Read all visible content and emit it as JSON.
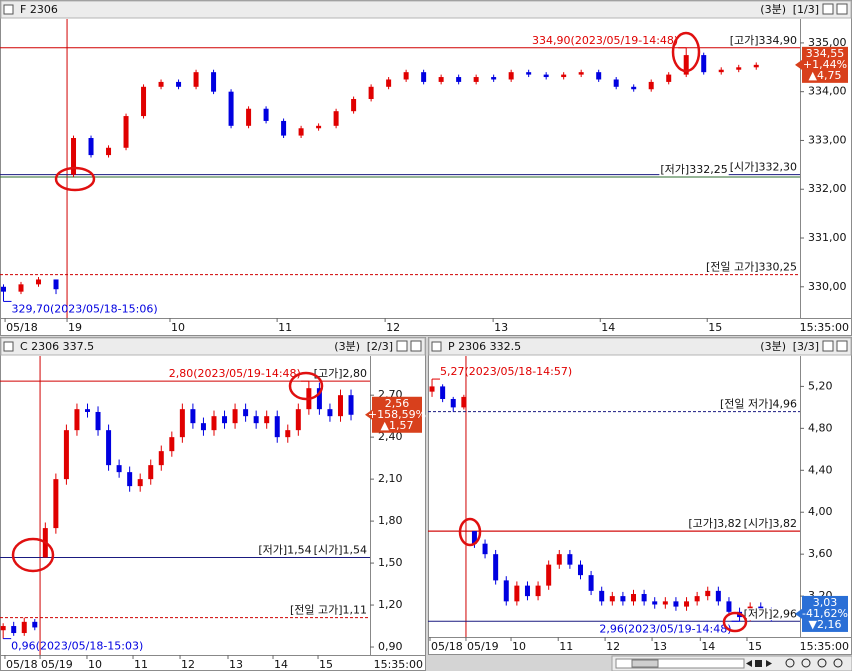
{
  "chart_data": [
    {
      "type": "candlestick",
      "title": "F 2306",
      "interval": "(3분)",
      "page": "[1/3]",
      "end_label": "15:35:00",
      "xlim": [
        -0.2,
        45.5
      ],
      "xticks": [
        {
          "value": 0.09,
          "label": "05/18"
        },
        {
          "value": 3.63,
          "label": "19"
        },
        {
          "value": 9.51,
          "label": "10"
        },
        {
          "value": 15.63,
          "label": "11"
        },
        {
          "value": 21.8,
          "label": "12"
        },
        {
          "value": 27.97,
          "label": "13"
        },
        {
          "value": 34.09,
          "label": "14"
        },
        {
          "value": 40.2,
          "label": "15"
        }
      ],
      "ylim": [
        329.36,
        335.49
      ],
      "yticks": [
        {
          "value": 335,
          "label": "335,00"
        },
        {
          "value": 334,
          "label": "334,00"
        },
        {
          "value": 333,
          "label": "333,00"
        },
        {
          "value": 332,
          "label": "332,00"
        },
        {
          "value": 331,
          "label": "331,00"
        },
        {
          "value": 330,
          "label": "330,00"
        }
      ],
      "up_color": "#e00000",
      "down_color": "#0000e0",
      "open": [
        330.0,
        329.9,
        330.05,
        330.15,
        332.3,
        333.05,
        332.7,
        332.85,
        333.5,
        334.1,
        334.2,
        334.1,
        334.4,
        334.0,
        333.3,
        333.65,
        333.4,
        333.1,
        333.25,
        333.3,
        333.6,
        333.85,
        334.1,
        334.25,
        334.4,
        334.2,
        334.3,
        334.2,
        334.3,
        334.25,
        334.4,
        334.35,
        334.3,
        334.35,
        334.4,
        334.25,
        334.1,
        334.05,
        334.2,
        334.35,
        334.75,
        334.4,
        334.45,
        334.5
      ],
      "high": [
        330.05,
        330.1,
        330.2,
        330.15,
        333.1,
        333.1,
        332.9,
        333.55,
        334.15,
        334.25,
        334.25,
        334.45,
        334.45,
        334.05,
        333.7,
        333.7,
        333.45,
        333.3,
        333.35,
        333.65,
        333.9,
        334.15,
        334.3,
        334.45,
        334.45,
        334.35,
        334.35,
        334.35,
        334.35,
        334.45,
        334.45,
        334.4,
        334.4,
        334.45,
        334.45,
        334.3,
        334.15,
        334.25,
        334.4,
        334.9,
        334.8,
        334.5,
        334.55,
        334.6
      ],
      "low": [
        329.7,
        329.85,
        330.0,
        329.85,
        332.25,
        332.65,
        332.65,
        332.8,
        333.45,
        334.05,
        334.05,
        334.05,
        333.95,
        333.25,
        333.25,
        333.35,
        333.05,
        333.05,
        333.2,
        333.25,
        333.55,
        333.8,
        334.05,
        334.2,
        334.15,
        334.15,
        334.15,
        334.15,
        334.2,
        334.2,
        334.3,
        334.25,
        334.25,
        334.3,
        334.2,
        334.05,
        334.0,
        334.0,
        334.15,
        334.3,
        334.35,
        334.35,
        334.4,
        334.45
      ],
      "close": [
        329.9,
        330.05,
        330.15,
        329.95,
        333.05,
        332.7,
        332.85,
        333.5,
        334.1,
        334.2,
        334.1,
        334.4,
        334.0,
        333.3,
        333.65,
        333.4,
        333.1,
        333.25,
        333.3,
        333.6,
        333.85,
        334.1,
        334.25,
        334.4,
        334.2,
        334.3,
        334.2,
        334.3,
        334.25,
        334.4,
        334.35,
        334.3,
        334.35,
        334.4,
        334.25,
        334.1,
        334.05,
        334.2,
        334.35,
        334.75,
        334.4,
        334.45,
        334.5,
        334.55
      ],
      "levels": [
        {
          "value": 334.9,
          "label": "[고가]334,90",
          "color": "#d00000",
          "dashed": false
        },
        {
          "value": 332.25,
          "label": "[저가]332,25",
          "color": "#2e6b2e",
          "dashed": false
        },
        {
          "value": 332.3,
          "label": "[시가]332,30",
          "color": "#1a1a80",
          "dashed": false
        },
        {
          "value": 330.25,
          "label": "[전일 고가]330,25",
          "color": "#d00000",
          "dashed": true
        }
      ],
      "extremes": [
        {
          "value": 334.9,
          "label": "334,90(2023/05/19-14:48)"
        },
        {
          "value": 329.7,
          "label": "329,70(2023/05/18-15:06)"
        }
      ],
      "last_box": {
        "price": "334,55",
        "change_pct": "+1,44%",
        "change": "▲4,75",
        "color": "#d8401c"
      }
    },
    {
      "type": "candlestick",
      "title": "C 2306 337.5",
      "interval": "(3분)",
      "page": "[2/3]",
      "end_label": "15:35:00",
      "xlim": [
        -0.3,
        34.8
      ],
      "xticks": [
        {
          "value": 0.17,
          "label": "05/18"
        },
        {
          "value": 3.5,
          "label": "05/19"
        },
        {
          "value": 7.95,
          "label": "10"
        },
        {
          "value": 12.32,
          "label": "11"
        },
        {
          "value": 16.78,
          "label": "12"
        },
        {
          "value": 21.33,
          "label": "13"
        },
        {
          "value": 25.6,
          "label": "14"
        },
        {
          "value": 29.87,
          "label": "15"
        }
      ],
      "ylim": [
        0.843,
        2.98
      ],
      "yticks": [
        {
          "value": 2.7,
          "label": "2,70"
        },
        {
          "value": 2.4,
          "label": "2,40"
        },
        {
          "value": 2.1,
          "label": "2,10"
        },
        {
          "value": 1.8,
          "label": "1,80"
        },
        {
          "value": 1.5,
          "label": "1,50"
        },
        {
          "value": 1.2,
          "label": "1,20"
        },
        {
          "value": 0.9,
          "label": "0,90"
        }
      ],
      "up_color": "#e00000",
      "down_color": "#0000e0",
      "open": [
        1.02,
        1.05,
        1.0,
        1.08,
        1.54,
        1.75,
        2.1,
        2.45,
        2.6,
        2.58,
        2.45,
        2.2,
        2.15,
        2.05,
        2.1,
        2.2,
        2.3,
        2.4,
        2.6,
        2.5,
        2.45,
        2.55,
        2.5,
        2.6,
        2.55,
        2.5,
        2.55,
        2.4,
        2.45,
        2.6,
        2.75,
        2.6,
        2.55,
        2.7
      ],
      "high": [
        1.07,
        1.08,
        1.11,
        1.1,
        1.79,
        2.14,
        2.49,
        2.64,
        2.64,
        2.62,
        2.49,
        2.24,
        2.19,
        2.14,
        2.24,
        2.34,
        2.44,
        2.64,
        2.64,
        2.54,
        2.59,
        2.59,
        2.64,
        2.64,
        2.59,
        2.59,
        2.59,
        2.49,
        2.64,
        2.8,
        2.79,
        2.64,
        2.74,
        2.74
      ],
      "low": [
        0.96,
        0.98,
        0.98,
        1.02,
        1.54,
        1.71,
        2.06,
        2.41,
        2.54,
        2.41,
        2.16,
        2.11,
        2.01,
        2.01,
        2.06,
        2.16,
        2.26,
        2.36,
        2.46,
        2.41,
        2.41,
        2.46,
        2.46,
        2.51,
        2.46,
        2.46,
        2.36,
        2.36,
        2.41,
        2.56,
        2.56,
        2.51,
        2.51,
        2.52
      ],
      "close": [
        1.05,
        1.0,
        1.08,
        1.04,
        1.75,
        2.1,
        2.45,
        2.6,
        2.58,
        2.45,
        2.2,
        2.15,
        2.05,
        2.1,
        2.2,
        2.3,
        2.4,
        2.6,
        2.5,
        2.45,
        2.55,
        2.5,
        2.6,
        2.55,
        2.5,
        2.55,
        2.4,
        2.45,
        2.6,
        2.75,
        2.6,
        2.55,
        2.7,
        2.56
      ],
      "levels": [
        {
          "value": 2.8,
          "label": "[고가]2,80",
          "color": "#d00000",
          "dashed": false
        },
        {
          "value": 1.54,
          "label": "[저가]1,54",
          "color": "#1a1a80",
          "dashed": false
        },
        {
          "value": 1.54,
          "label": "[시가]1,54",
          "color": "#1a1a80",
          "dashed": false
        },
        {
          "value": 1.11,
          "label": "[전일 고가]1,11",
          "color": "#d00000",
          "dashed": true
        }
      ],
      "extremes": [
        {
          "value": 2.8,
          "label": "2,80(2023/05/19-14:48)"
        },
        {
          "value": 0.96,
          "label": "0,96(2023/05/18-15:03)"
        }
      ],
      "last_box": {
        "price": "2,56",
        "change_pct": "+158,59%",
        "change": "▲1,57",
        "color": "#d8401c"
      }
    },
    {
      "type": "candlestick",
      "title": "P 2306 332.5",
      "interval": "(3분)",
      "page": "[3/3]",
      "end_label": "15:35:00",
      "xlim": [
        -0.38,
        34.7
      ],
      "xticks": [
        {
          "value": -0.19,
          "label": "05/18"
        },
        {
          "value": 3.2,
          "label": "05/19"
        },
        {
          "value": 7.45,
          "label": "10"
        },
        {
          "value": 11.9,
          "label": "11"
        },
        {
          "value": 16.32,
          "label": "12"
        },
        {
          "value": 20.75,
          "label": "13"
        },
        {
          "value": 25.3,
          "label": "14"
        },
        {
          "value": 29.7,
          "label": "15"
        }
      ],
      "ylim": [
        2.81,
        5.49
      ],
      "yticks": [
        {
          "value": 5.2,
          "label": "5,20"
        },
        {
          "value": 4.8,
          "label": "4,80"
        },
        {
          "value": 4.4,
          "label": "4,40"
        },
        {
          "value": 4.0,
          "label": "4,00"
        },
        {
          "value": 3.6,
          "label": "3,60"
        },
        {
          "value": 3.2,
          "label": "3,20"
        }
      ],
      "up_color": "#e00000",
      "down_color": "#0000e0",
      "open": [
        5.15,
        5.2,
        5.08,
        5.0,
        3.82,
        3.7,
        3.6,
        3.35,
        3.15,
        3.3,
        3.2,
        3.3,
        3.5,
        3.6,
        3.5,
        3.4,
        3.25,
        3.15,
        3.2,
        3.15,
        3.22,
        3.15,
        3.12,
        3.15,
        3.1,
        3.15,
        3.2,
        3.25,
        3.15,
        3.05,
        3.0,
        3.1,
        3.05,
        3.0
      ],
      "high": [
        5.27,
        5.22,
        5.1,
        5.12,
        3.82,
        3.74,
        3.64,
        3.39,
        3.34,
        3.34,
        3.34,
        3.54,
        3.64,
        3.64,
        3.54,
        3.44,
        3.29,
        3.24,
        3.24,
        3.26,
        3.26,
        3.19,
        3.19,
        3.19,
        3.19,
        3.24,
        3.29,
        3.29,
        3.19,
        3.09,
        3.14,
        3.14,
        3.09,
        3.07
      ],
      "low": [
        5.1,
        5.05,
        4.96,
        4.98,
        3.66,
        3.56,
        3.31,
        3.11,
        3.11,
        3.16,
        3.16,
        3.26,
        3.46,
        3.46,
        3.36,
        3.21,
        3.11,
        3.11,
        3.11,
        3.11,
        3.11,
        3.08,
        3.08,
        3.06,
        3.06,
        3.11,
        3.16,
        3.11,
        3.01,
        2.96,
        2.96,
        3.01,
        2.96,
        2.99
      ],
      "close": [
        5.2,
        5.08,
        5.0,
        5.1,
        3.7,
        3.6,
        3.35,
        3.15,
        3.3,
        3.2,
        3.3,
        3.5,
        3.6,
        3.5,
        3.4,
        3.25,
        3.15,
        3.2,
        3.15,
        3.22,
        3.15,
        3.12,
        3.15,
        3.1,
        3.15,
        3.2,
        3.25,
        3.15,
        3.05,
        3.0,
        3.1,
        3.05,
        3.0,
        3.03
      ],
      "levels": [
        {
          "value": 4.96,
          "label": "[전일 저가]4,96",
          "color": "#1a1a80",
          "dashed": true
        },
        {
          "value": 3.82,
          "label": "[고가]3,82",
          "color": "#d00000",
          "dashed": false
        },
        {
          "value": 3.82,
          "label": "[시가]3,82",
          "color": "#d00000",
          "dashed": false
        },
        {
          "value": 2.96,
          "label": "[저가]2,96",
          "color": "#1a1a80",
          "dashed": false
        }
      ],
      "extremes": [
        {
          "value": 5.27,
          "label": "5,27(2023/05/18-14:57)"
        },
        {
          "value": 2.96,
          "label": "2,96(2023/05/19-14:48)"
        }
      ],
      "last_box": {
        "price": "3,03",
        "change_pct": "-41,62%",
        "change": "▼2,16",
        "color": "#2a6fd6"
      }
    }
  ]
}
